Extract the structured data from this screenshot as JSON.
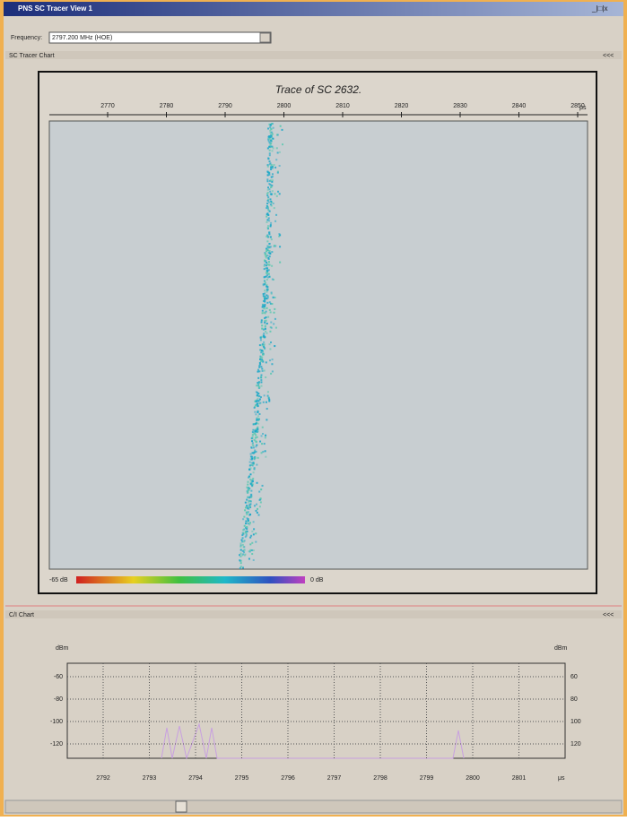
{
  "window": {
    "title": "PNS SC Tracer View 1",
    "controls": "_|□|x"
  },
  "toolbar": {
    "frequency_label": "Frequency:",
    "frequency_value": "2797.200 MHz (HOE)"
  },
  "trace_panel": {
    "header": "SC Tracer Chart",
    "collapse": "<<<",
    "title": "Trace of SC 2632.",
    "x_ticks": [
      "2770",
      "2780",
      "2790",
      "2800",
      "2810",
      "2820",
      "2830",
      "2840",
      "2850"
    ],
    "x_unit": "μs",
    "colorbar_min": "-65 dB",
    "colorbar_max": "0 dB"
  },
  "ci_panel": {
    "header": "C/I Chart",
    "collapse": "<<<",
    "left_unit": "dBm",
    "right_unit": "dBm",
    "left_ticks": [
      "-60",
      "-80",
      "-100",
      "-120"
    ],
    "right_ticks": [
      "60",
      "80",
      "100",
      "120"
    ],
    "x_ticks": [
      "2792",
      "2793",
      "2794",
      "2795",
      "2796",
      "2797",
      "2798",
      "2799",
      "2800",
      "2801"
    ],
    "x_unit": "μs"
  }
}
